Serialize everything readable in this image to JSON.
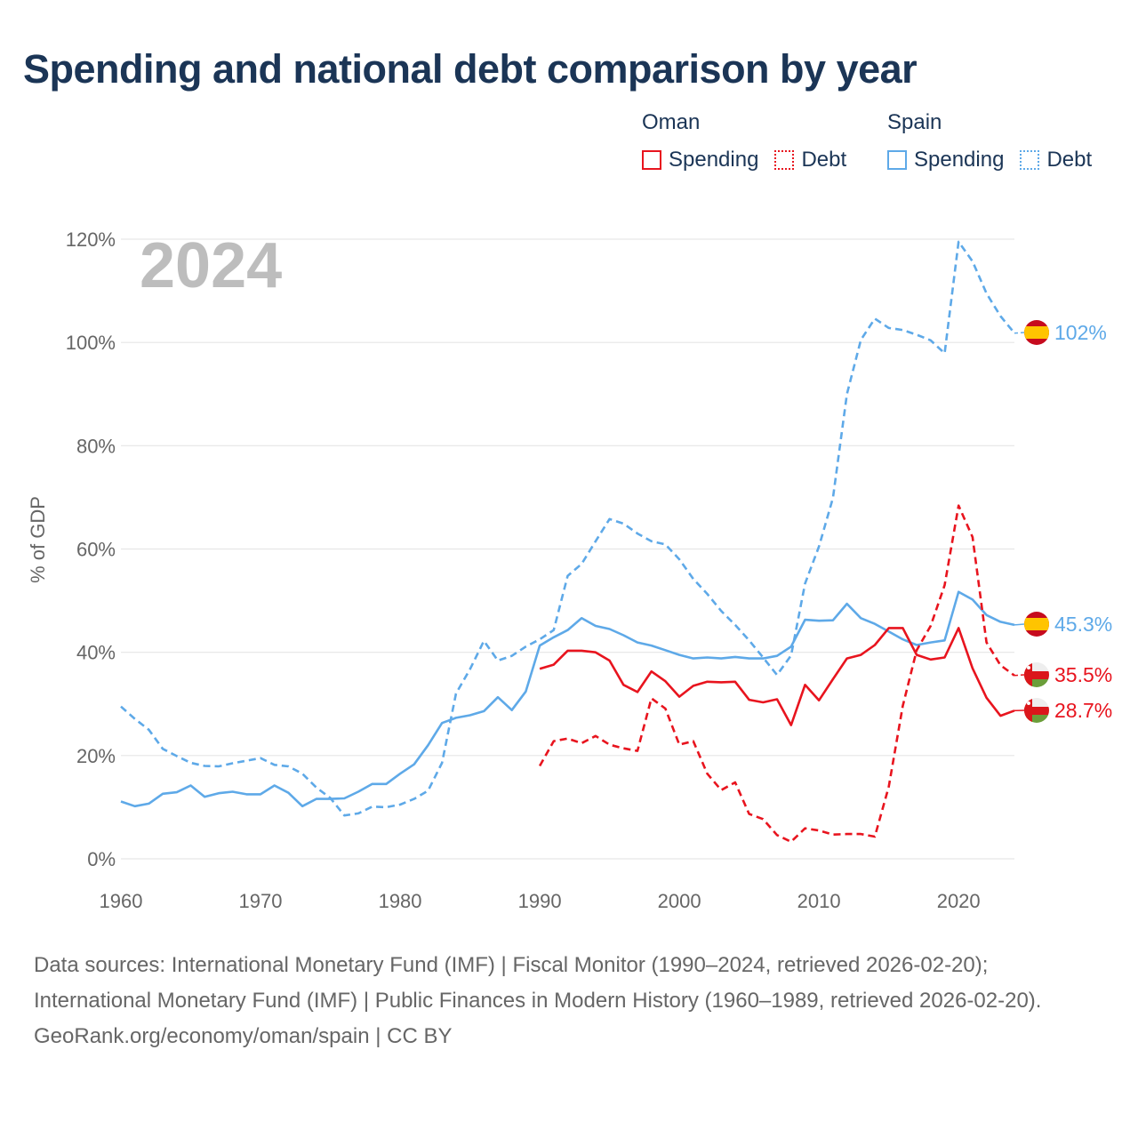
{
  "title": "Spending and national debt comparison by year",
  "legend": {
    "groups": [
      {
        "name": "Oman",
        "items": [
          {
            "label": "Spending",
            "style": "solid"
          },
          {
            "label": "Debt",
            "style": "dotted"
          }
        ],
        "color": "#e8141e"
      },
      {
        "name": "Spain",
        "items": [
          {
            "label": "Spending",
            "style": "solid"
          },
          {
            "label": "Debt",
            "style": "dotted"
          }
        ],
        "color": "#5ea9e8"
      }
    ]
  },
  "footer": {
    "sources": "Data sources: International Monetary Fund (IMF) | Fiscal Monitor (1990–2024, retrieved 2026-02-20); International Monetary Fund (IMF) | Public Finances in Modern History (1960–1989, retrieved 2026-02-20).",
    "credit": "GeoRank.org/economy/oman/spain | CC BY"
  },
  "chart_data": {
    "type": "line",
    "year_label": "2024",
    "ylabel": "% of GDP",
    "xlim": [
      1960,
      2024
    ],
    "ylim": [
      0,
      120
    ],
    "x_ticks": [
      1960,
      1970,
      1980,
      1990,
      2000,
      2010,
      2020
    ],
    "y_ticks": [
      0,
      20,
      40,
      60,
      80,
      100,
      120
    ],
    "y_tick_labels": [
      "0%",
      "20%",
      "40%",
      "60%",
      "80%",
      "100%",
      "120%"
    ],
    "series": [
      {
        "name": "Spain Spending",
        "color": "#5ea9e8",
        "dash": "solid",
        "start": 1960,
        "values": [
          11.1,
          10.2,
          10.7,
          12.6,
          12.9,
          14.2,
          12,
          12.7,
          13,
          12.5,
          12.5,
          14.2,
          12.8,
          10.2,
          11.6,
          11.6,
          11.7,
          13,
          14.5,
          14.5,
          16.5,
          18.3,
          22,
          26.3,
          27.3,
          27.8,
          28.6,
          31.3,
          28.8,
          32.4,
          41.3,
          42.9,
          44.3,
          46.6,
          45.1,
          44.5,
          43.3,
          41.9,
          41.3,
          40.4,
          39.5,
          38.8,
          39,
          38.8,
          39.1,
          38.8,
          38.8,
          39.3,
          41.1,
          46.3,
          46.1,
          46.2,
          49.4,
          46.6,
          45.5,
          44,
          42.5,
          41.4,
          41.9,
          42.3,
          51.7,
          50.2,
          47.2,
          45.9,
          45.3
        ]
      },
      {
        "name": "Spain Debt",
        "color": "#5ea9e8",
        "dash": "dashed",
        "start": 1960,
        "values": [
          29.5,
          27.1,
          25,
          21.3,
          19.9,
          18.6,
          18,
          17.9,
          18.5,
          19,
          19.5,
          18.2,
          17.9,
          16.5,
          13.8,
          11.8,
          8.4,
          8.8,
          10.1,
          10,
          10.5,
          11.6,
          13.2,
          18.6,
          32,
          36.7,
          42.2,
          38.4,
          39.3,
          41.1,
          42.5,
          44.3,
          54.8,
          57.1,
          61.5,
          65.8,
          64.9,
          63,
          61.5,
          60.9,
          58,
          54.2,
          51.3,
          48,
          45.3,
          42.3,
          39,
          35.6,
          39.4,
          53.3,
          60.5,
          69.9,
          90,
          100.5,
          104.6,
          102.8,
          102.4,
          101.5,
          100.4,
          97.9,
          119.5,
          115.7,
          109.5,
          105.1,
          101.8
        ]
      },
      {
        "name": "Oman Spending",
        "color": "#e8141e",
        "dash": "solid",
        "start": 1990,
        "values": [
          36.8,
          37.6,
          40.3,
          40.3,
          40,
          38.4,
          33.7,
          32.3,
          36.3,
          34.4,
          31.4,
          33.5,
          34.3,
          34.2,
          34.3,
          30.8,
          30.3,
          30.9,
          25.9,
          33.7,
          30.7,
          34.8,
          38.8,
          39.5,
          41.4,
          44.7,
          44.7,
          39.5,
          38.6,
          39,
          44.7,
          36.9,
          31.2,
          27.7,
          28.7
        ]
      },
      {
        "name": "Oman Debt",
        "color": "#e8141e",
        "dash": "dashed",
        "start": 1990,
        "values": [
          18,
          22.8,
          23.3,
          22.4,
          23.8,
          22.1,
          21.4,
          20.9,
          31.1,
          29.1,
          22.1,
          22.8,
          16.5,
          13.3,
          14.8,
          8.7,
          7.7,
          4.6,
          3.3,
          5.9,
          5.5,
          4.7,
          4.8,
          4.8,
          4.3,
          14,
          29.6,
          40.4,
          45.1,
          53,
          68.4,
          62.3,
          41.9,
          37.5,
          35.5
        ]
      }
    ],
    "end_labels": [
      {
        "series": "Spain Debt",
        "text": "102%",
        "value": 101.8,
        "flag": "spain"
      },
      {
        "series": "Spain Spending",
        "text": "45.3%",
        "value": 45.3,
        "flag": "spain"
      },
      {
        "series": "Oman Debt",
        "text": "35.5%",
        "value": 35.5,
        "flag": "oman"
      },
      {
        "series": "Oman Spending",
        "text": "28.7%",
        "value": 28.7,
        "flag": "oman"
      }
    ]
  }
}
